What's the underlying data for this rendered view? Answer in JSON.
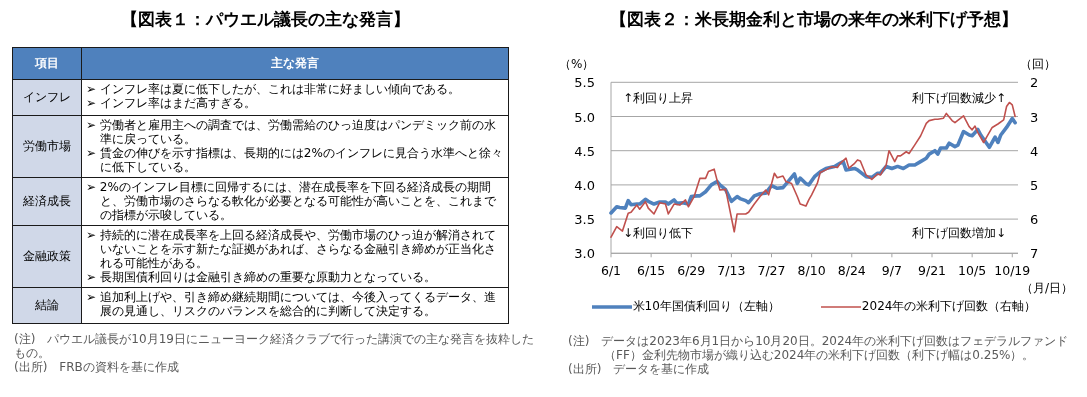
{
  "chart_data": [
    {
      "type": "other",
      "title": "【図表１：パウエル議長の主な発言】",
      "annotations": [
        "項目",
        "主な発言"
      ]
    },
    {
      "type": "other",
      "title": "インフレ",
      "annotations": [
        "➢ インフレ率は夏に低下したが、これは非常に好ましい傾向である。",
        "➢ インフレ率はまだ高すぎる。"
      ]
    },
    {
      "type": "other",
      "title": "労働市場",
      "annotations": [
        "➢ 労働者と雇用主への調査では、労働需給のひっ迫度はパンデミック前の水準に戻っている。",
        "➢ 賃金の伸びを示す指標は、長期的には2%のインフレに見合う水準へと徐々に低下している。"
      ]
    },
    {
      "type": "other",
      "title": "経済成長",
      "annotations": [
        "➢ 2%のインフレ目標に回帰するには、潜在成長率を下回る経済成長の期間と、労働市場のさらなる軟化が必要となる可能性が高いことを、これまでの指標が示唆している。"
      ]
    },
    {
      "type": "other",
      "title": "金融政策",
      "annotations": [
        "➢ 持続的に潜在成長率を上回る経済成長や、労働市場のひっ迫が解消されていないことを示す新たな証拠があれば、さらなる金融引き締めが正当化される可能性がある。",
        "➢ 長期国債利回りは金融引き締めの重要な原動力となっている。"
      ]
    },
    {
      "type": "other",
      "title": "結論",
      "annotations": [
        "➢ 追加利上げや、引き締め継続期間については、今後入ってくるデータ、進展の見通し、リスクのバランスを総合的に判断して決定する。"
      ]
    },
    {
      "type": "other",
      "annotations": [
        "(注)　パウエル議長が10月19日にニューヨーク経済クラブで行った講演での主な発言を抜粋したもの。",
        "(出所)　FRBの資料を基に作成"
      ]
    },
    {
      "type": "line",
      "title": "【図表２：米長期金利と市場の来年の米利下げ予想】",
      "ylabel": "（%）",
      "y2label": "（回）",
      "xlabel": "（月/日）",
      "xlim": [
        "2023-06-01",
        "2023-10-21"
      ],
      "xticks": [
        {
          "value": "2023-06-01",
          "label": "6/1"
        },
        {
          "value": "2023-06-15",
          "label": "6/15"
        },
        {
          "value": "2023-06-29",
          "label": "6/29"
        },
        {
          "value": "2023-07-13",
          "label": "7/13"
        },
        {
          "value": "2023-07-27",
          "label": "7/27"
        },
        {
          "value": "2023-08-10",
          "label": "8/10"
        },
        {
          "value": "2023-08-24",
          "label": "8/24"
        },
        {
          "value": "2023-09-07",
          "label": "9/7"
        },
        {
          "value": "2023-09-21",
          "label": "9/21"
        },
        {
          "value": "2023-10-05",
          "label": "10/5"
        },
        {
          "value": "2023-10-19",
          "label": "10/19"
        }
      ],
      "ylim": [
        3.0,
        5.5
      ],
      "yticks": [
        {
          "value": 3,
          "label": "3.0"
        },
        3.5,
        {
          "value": 4,
          "label": "4.0"
        },
        4.5,
        {
          "value": 5,
          "label": "5.0"
        },
        5.5
      ],
      "y2lim": [
        7,
        2
      ],
      "y2ticks": [
        2,
        3,
        4,
        5,
        6,
        7
      ],
      "grid": "y",
      "legend": "bottom",
      "series": [
        {
          "name": "米10年国債利回り（左軸）",
          "color": "#4f81bd",
          "x": [
            "2023-06-01",
            "2023-06-03",
            "2023-06-04",
            "2023-06-06",
            "2023-06-07",
            "2023-06-08",
            "2023-06-10",
            "2023-06-11",
            "2023-06-13",
            "2023-06-14",
            "2023-06-16",
            "2023-06-18",
            "2023-06-20",
            "2023-06-21",
            "2023-06-23",
            "2023-06-24",
            "2023-06-26",
            "2023-06-28",
            "2023-06-29",
            "2023-07-01",
            "2023-07-02",
            "2023-07-04",
            "2023-07-06",
            "2023-07-08",
            "2023-07-09",
            "2023-07-11",
            "2023-07-13",
            "2023-07-15",
            "2023-07-16",
            "2023-07-18",
            "2023-07-19",
            "2023-07-21",
            "2023-07-23",
            "2023-07-25",
            "2023-07-27",
            "2023-07-29",
            "2023-07-31",
            "2023-08-02",
            "2023-08-04",
            "2023-08-05",
            "2023-08-06",
            "2023-08-08",
            "2023-08-09",
            "2023-08-11",
            "2023-08-13",
            "2023-08-15",
            "2023-08-18",
            "2023-08-20",
            "2023-08-21",
            "2023-08-22",
            "2023-08-25",
            "2023-08-26",
            "2023-08-29",
            "2023-08-31",
            "2023-09-02",
            "2023-09-03",
            "2023-09-05",
            "2023-09-07",
            "2023-09-09",
            "2023-09-11",
            "2023-09-13",
            "2023-09-15",
            "2023-09-17",
            "2023-09-19",
            "2023-09-20",
            "2023-09-22",
            "2023-09-23",
            "2023-09-24",
            "2023-09-26",
            "2023-09-27",
            "2023-09-29",
            "2023-09-30",
            "2023-10-02",
            "2023-10-04",
            "2023-10-05",
            "2023-10-07",
            "2023-10-08",
            "2023-10-11",
            "2023-10-13",
            "2023-10-14",
            "2023-10-15",
            "2023-10-17",
            "2023-10-19",
            "2023-10-20"
          ],
          "values": [
            3.59,
            3.68,
            3.67,
            3.66,
            3.77,
            3.71,
            3.72,
            3.72,
            3.79,
            3.76,
            3.72,
            3.75,
            3.75,
            3.72,
            3.78,
            3.73,
            3.74,
            3.72,
            3.83,
            3.84,
            3.84,
            3.9,
            4.0,
            4.05,
            4.0,
            3.93,
            3.76,
            3.83,
            3.8,
            3.77,
            3.74,
            3.84,
            3.87,
            3.88,
            3.99,
            3.95,
            3.96,
            4.06,
            4.16,
            4.02,
            4.1,
            4.02,
            4.0,
            4.12,
            4.19,
            4.24,
            4.27,
            4.32,
            4.34,
            4.22,
            4.24,
            4.22,
            4.12,
            4.11,
            4.17,
            4.17,
            4.27,
            4.24,
            4.27,
            4.24,
            4.29,
            4.29,
            4.34,
            4.39,
            4.45,
            4.5,
            4.45,
            4.54,
            4.54,
            4.61,
            4.56,
            4.58,
            4.78,
            4.73,
            4.72,
            4.81,
            4.73,
            4.55,
            4.7,
            4.62,
            4.73,
            4.84,
            4.97,
            4.91
          ]
        },
        {
          "name": "2024年の米利下げ回数（右軸）",
          "color": "#c0504d",
          "axis": "y2",
          "x": [
            "2023-06-01",
            "2023-06-03",
            "2023-06-05",
            "2023-06-07",
            "2023-06-08",
            "2023-06-10",
            "2023-06-11",
            "2023-06-13",
            "2023-06-14",
            "2023-06-16",
            "2023-06-18",
            "2023-06-20",
            "2023-06-21",
            "2023-06-23",
            "2023-06-25",
            "2023-06-27",
            "2023-06-28",
            "2023-06-30",
            "2023-07-02",
            "2023-07-04",
            "2023-07-05",
            "2023-07-07",
            "2023-07-08",
            "2023-07-09",
            "2023-07-11",
            "2023-07-14",
            "2023-07-15",
            "2023-07-18",
            "2023-07-19",
            "2023-07-21",
            "2023-07-23",
            "2023-07-25",
            "2023-07-26",
            "2023-07-28",
            "2023-07-29",
            "2023-07-31",
            "2023-08-01",
            "2023-08-03",
            "2023-08-05",
            "2023-08-06",
            "2023-08-08",
            "2023-08-09",
            "2023-08-10",
            "2023-08-12",
            "2023-08-13",
            "2023-08-15",
            "2023-08-17",
            "2023-08-19",
            "2023-08-20",
            "2023-08-22",
            "2023-08-23",
            "2023-08-25",
            "2023-08-26",
            "2023-08-27",
            "2023-08-29",
            "2023-08-31",
            "2023-09-02",
            "2023-09-03",
            "2023-09-05",
            "2023-09-06",
            "2023-09-08",
            "2023-09-09",
            "2023-09-10",
            "2023-09-12",
            "2023-09-13",
            "2023-09-15",
            "2023-09-17",
            "2023-09-19",
            "2023-09-20",
            "2023-09-22",
            "2023-09-23",
            "2023-09-25",
            "2023-09-26",
            "2023-09-28",
            "2023-09-29",
            "2023-10-01",
            "2023-10-02",
            "2023-10-04",
            "2023-10-05",
            "2023-10-06",
            "2023-10-07",
            "2023-10-09",
            "2023-10-10",
            "2023-10-12",
            "2023-10-14",
            "2023-10-16",
            "2023-10-17",
            "2023-10-18",
            "2023-10-19",
            "2023-10-20"
          ],
          "values": [
            6.53,
            6.22,
            6.35,
            5.83,
            5.8,
            5.59,
            5.71,
            5.49,
            5.68,
            5.85,
            5.52,
            5.56,
            5.85,
            5.56,
            5.59,
            5.44,
            5.64,
            5.34,
            4.81,
            4.81,
            4.61,
            4.54,
            4.86,
            5.15,
            5.13,
            6.37,
            5.85,
            5.85,
            5.8,
            5.56,
            5.34,
            5.15,
            5.29,
            4.66,
            4.79,
            4.74,
            4.9,
            4.96,
            5.34,
            5.56,
            5.62,
            5.44,
            5.29,
            4.95,
            4.64,
            4.56,
            4.47,
            4.49,
            4.37,
            4.22,
            4.51,
            4.37,
            4.27,
            4.3,
            4.71,
            4.84,
            4.68,
            4.71,
            4.42,
            4.0,
            4.32,
            4.15,
            4.15,
            4.03,
            4.08,
            3.83,
            3.57,
            3.2,
            3.12,
            3.08,
            3.08,
            3.05,
            2.91,
            3.12,
            3.18,
            3.05,
            2.98,
            3.3,
            3.39,
            3.28,
            3.47,
            3.76,
            3.61,
            3.32,
            3.22,
            3.1,
            2.71,
            2.59,
            2.66,
            3.0
          ]
        }
      ],
      "annotations": [
        "↑利回り上昇",
        "↓利回り低下",
        "利下げ回数減少↑",
        "利下げ回数増加↓",
        "(注)　データは2023年6月1日から10月20日。2024年の米利下げ回数はフェデラルファンド（FF）金利先物市場が織り込む2024年の米利下げ回数（利下げ幅は0.25%）。",
        "(出所)　データを基に作成"
      ]
    }
  ]
}
